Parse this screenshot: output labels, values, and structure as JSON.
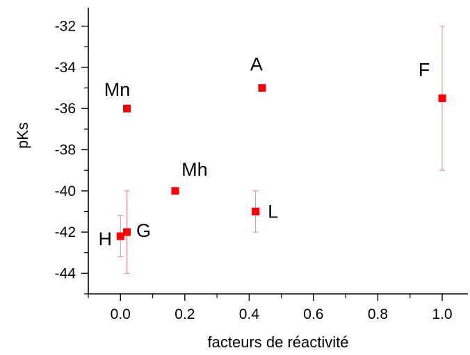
{
  "chart_data": {
    "type": "scatter",
    "xlabel": "facteurs de réactivité",
    "ylabel": "pKs",
    "xlim": [
      -0.1,
      1.08
    ],
    "ylim": [
      -45,
      -31.1
    ],
    "x_ticks": [
      0.0,
      0.2,
      0.4,
      0.6,
      0.8,
      1.0
    ],
    "x_tick_labels": [
      "0.0",
      "0.2",
      "0.4",
      "0.6",
      "0.8",
      "1.0"
    ],
    "y_ticks": [
      -44,
      -42,
      -40,
      -38,
      -36,
      -34,
      -32
    ],
    "y_tick_labels": [
      "-44",
      "-42",
      "-40",
      "-38",
      "-36",
      "-34",
      "-32"
    ],
    "grid": false,
    "marker_color": "#ff0000",
    "errorbar_color": "#ff8080",
    "points": [
      {
        "label": "Mn",
        "x": 0.02,
        "y": -36.0,
        "yerr": null
      },
      {
        "label": "A",
        "x": 0.44,
        "y": -35.0,
        "yerr": null
      },
      {
        "label": "F",
        "x": 1.0,
        "y": -35.5,
        "yerr": 3.5
      },
      {
        "label": "Mh",
        "x": 0.17,
        "y": -40.0,
        "yerr": null
      },
      {
        "label": "L",
        "x": 0.42,
        "y": -41.0,
        "yerr": 1.0
      },
      {
        "label": "H",
        "x": 0.0,
        "y": -42.2,
        "yerr": 1.0
      },
      {
        "label": "G",
        "x": 0.02,
        "y": -42.0,
        "yerr": 2.0
      }
    ]
  }
}
